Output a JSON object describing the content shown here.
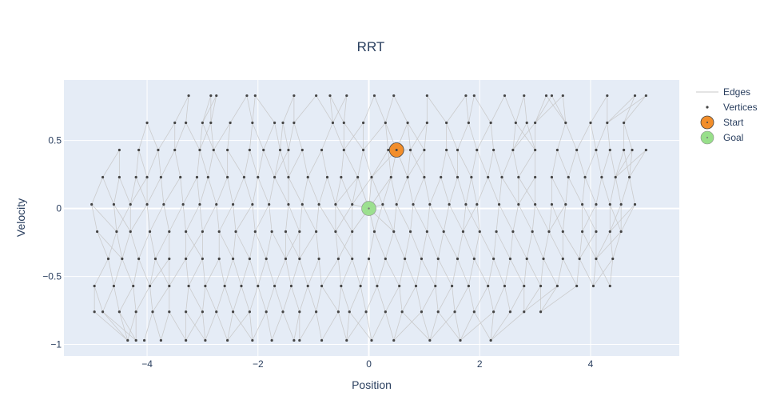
{
  "chart_data": {
    "type": "scatter",
    "title": "RRT",
    "xlabel": "Position",
    "ylabel": "Velocity",
    "xlim": [
      -5.5,
      5.6
    ],
    "ylim": [
      -1.085,
      0.945
    ],
    "xticks": [
      -4,
      -2,
      0,
      2,
      4
    ],
    "xtick_labels": [
      "−4",
      "−2",
      "0",
      "2",
      "4"
    ],
    "yticks": [
      -1,
      -0.5,
      0,
      0.5
    ],
    "ytick_labels": [
      "−1",
      "−0.5",
      "0",
      "0.5"
    ],
    "grid": true,
    "legend_position": "top-right",
    "legend": [
      "Edges",
      "Vertices",
      "Start",
      "Goal"
    ],
    "colors": {
      "plot_bg": "#e5ecf6",
      "grid": "#ffffff",
      "edges": "#c8c8c8",
      "vertices": "#444444",
      "start": "#f28e2b",
      "goal": "#98df8a"
    },
    "velocity_levels": [
      -0.97,
      -0.76,
      -0.57,
      -0.37,
      -0.17,
      0.03,
      0.23,
      0.43,
      0.63,
      0.83
    ],
    "vertex_rows": [
      {
        "y": 0.83,
        "x": [
          -3.25,
          -2.85,
          -2.75,
          -2.2,
          -2.05,
          -1.35,
          -0.95,
          -0.7,
          -0.4,
          0.1,
          0.45,
          1.05,
          1.75,
          1.9,
          2.45,
          2.8,
          3.2,
          3.3,
          3.5,
          4.3,
          4.8,
          5.0
        ]
      },
      {
        "y": 0.63,
        "x": [
          -4.0,
          -3.5,
          -3.3,
          -3.0,
          -2.85,
          -2.5,
          -2.1,
          -1.7,
          -1.55,
          -1.35,
          -0.65,
          -0.45,
          -0.1,
          0.3,
          0.7,
          1.05,
          1.4,
          1.8,
          2.2,
          2.65,
          2.85,
          3.0,
          3.55,
          4.0,
          4.3,
          4.6
        ]
      },
      {
        "y": 0.43,
        "x": [
          -4.5,
          -4.15,
          -3.8,
          -3.5,
          -3.05,
          -2.8,
          -2.55,
          -2.15,
          -1.9,
          -1.6,
          -1.45,
          -1.2,
          -0.85,
          -0.45,
          -0.1,
          0.35,
          0.75,
          1.0,
          1.4,
          1.6,
          1.95,
          2.25,
          2.6,
          3.0,
          3.4,
          3.75,
          4.1,
          4.35,
          4.6,
          4.75,
          5.0
        ]
      },
      {
        "y": 0.23,
        "x": [
          -4.8,
          -4.5,
          -4.2,
          -4.0,
          -3.75,
          -3.4,
          -3.1,
          -2.9,
          -2.55,
          -2.25,
          -2.0,
          -1.7,
          -1.45,
          -1.1,
          -0.75,
          -0.5,
          -0.2,
          0.05,
          0.4,
          0.7,
          1.0,
          1.3,
          1.6,
          1.85,
          2.15,
          2.4,
          2.7,
          3.0,
          3.3,
          3.6,
          3.9,
          4.2,
          4.45,
          4.7
        ]
      },
      {
        "y": 0.03,
        "x": [
          -5.0,
          -4.6,
          -4.3,
          -4.0,
          -3.7,
          -3.35,
          -3.05,
          -2.75,
          -2.45,
          -2.1,
          -1.8,
          -1.45,
          -1.2,
          -0.9,
          -0.6,
          -0.3,
          0.25,
          0.5,
          0.8,
          1.1,
          1.45,
          1.75,
          1.95,
          2.35,
          2.7,
          3.0,
          3.3,
          3.55,
          3.85,
          4.1,
          4.35,
          4.55,
          4.8
        ]
      },
      {
        "y": -0.17,
        "x": [
          -4.9,
          -4.55,
          -4.3,
          -3.95,
          -3.6,
          -3.3,
          -3.0,
          -2.7,
          -2.4,
          -2.05,
          -1.75,
          -1.5,
          -1.25,
          -0.95,
          -0.6,
          -0.3,
          0.1,
          0.45,
          0.75,
          1.05,
          1.35,
          1.7,
          2.0,
          2.3,
          2.6,
          2.95,
          3.25,
          3.5,
          3.85,
          4.1,
          4.35,
          4.55
        ]
      },
      {
        "y": -0.37,
        "x": [
          -4.7,
          -4.45,
          -4.15,
          -3.85,
          -3.6,
          -3.3,
          -3.0,
          -2.7,
          -2.45,
          -2.15,
          -1.85,
          -1.5,
          -1.25,
          -0.9,
          -0.55,
          -0.3,
          0.0,
          0.3,
          0.65,
          0.95,
          1.25,
          1.6,
          1.9,
          2.25,
          2.55,
          2.85,
          3.15,
          3.5,
          3.8,
          4.1,
          4.4
        ]
      },
      {
        "y": -0.57,
        "x": [
          -4.95,
          -4.6,
          -4.25,
          -3.95,
          -3.6,
          -3.25,
          -2.95,
          -2.6,
          -2.3,
          -2.0,
          -1.7,
          -1.4,
          -1.1,
          -0.85,
          -0.5,
          -0.15,
          0.15,
          0.55,
          0.85,
          1.2,
          1.5,
          1.8,
          2.15,
          2.45,
          2.8,
          3.1,
          3.4,
          3.75,
          4.05,
          4.35
        ]
      },
      {
        "y": -0.76,
        "x": [
          -4.95,
          -4.8,
          -4.5,
          -4.2,
          -3.9,
          -3.6,
          -3.3,
          -3.0,
          -2.75,
          -2.45,
          -2.15,
          -1.85,
          -1.55,
          -1.25,
          -0.95,
          -0.55,
          -0.35,
          -0.05,
          0.3,
          0.6,
          0.95,
          1.25,
          1.55,
          1.9,
          2.25,
          2.55,
          2.8,
          3.1
        ]
      },
      {
        "y": -0.97,
        "x": [
          -4.35,
          -4.2,
          -4.05,
          -3.75,
          -3.3,
          -2.95,
          -2.55,
          -2.1,
          -1.75,
          -1.35,
          -1.25,
          -0.85,
          -0.4,
          0.05,
          0.45,
          1.1,
          1.65,
          2.2
        ]
      }
    ],
    "start": {
      "x": 0.5,
      "y": 0.43
    },
    "goal": {
      "x": 0.0,
      "y": 0.0
    }
  }
}
